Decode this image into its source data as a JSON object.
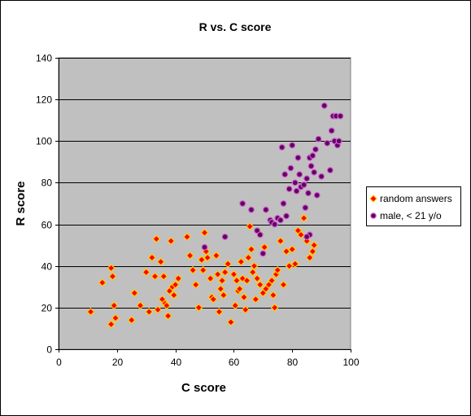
{
  "chart_data": {
    "type": "scatter",
    "title": "R vs. C score",
    "xlabel": "C score",
    "ylabel": "R score",
    "xlim": [
      0,
      100
    ],
    "ylim": [
      0,
      140
    ],
    "x_ticks": [
      0,
      20,
      40,
      60,
      80,
      100
    ],
    "y_ticks": [
      0,
      20,
      40,
      60,
      80,
      100,
      120,
      140
    ],
    "plot_background": "#C0C0C0",
    "grid": "horizontal major gridlines",
    "legend_position": "right",
    "series": [
      {
        "name": "random answers",
        "marker": "diamond",
        "color": "#FF0000",
        "edge_color": "#FFCC00",
        "x": [
          11,
          15,
          18,
          18,
          18.5,
          19,
          19.5,
          25,
          26,
          28,
          30,
          31,
          32,
          33,
          33.5,
          34,
          35,
          35.5,
          36,
          36.5,
          37,
          37.5,
          38,
          38.5,
          39,
          39.5,
          40,
          41,
          44,
          45,
          46,
          47,
          48,
          49,
          49.5,
          50,
          50.5,
          51,
          52,
          52.5,
          53,
          54,
          54.5,
          55,
          55.5,
          56,
          56.5,
          57,
          58,
          59,
          60,
          60.5,
          61,
          61.5,
          62,
          62.5,
          63,
          63.5,
          64,
          64.5,
          65,
          65.5,
          66,
          66.5,
          67,
          67.5,
          68,
          68.5,
          69,
          70,
          70.5,
          71,
          72,
          73,
          73.5,
          74,
          74.5,
          75,
          76,
          77,
          78,
          79,
          80,
          81,
          82,
          83,
          84,
          85,
          86,
          87,
          87.5
        ],
        "y": [
          18,
          32,
          39,
          12,
          35,
          21,
          15,
          14,
          27,
          21,
          37,
          18,
          44,
          35,
          53,
          19,
          42,
          24,
          35,
          22,
          21,
          16,
          28,
          52,
          30,
          26,
          31,
          34,
          54,
          45,
          38,
          31,
          20,
          43,
          38,
          56,
          47,
          44,
          34,
          25,
          24,
          45,
          36,
          18,
          29,
          33,
          26,
          37,
          41,
          13,
          36,
          21,
          33,
          28,
          29,
          42,
          34,
          25,
          19,
          33,
          44,
          59,
          48,
          37,
          40,
          24,
          34,
          56,
          31,
          27,
          49,
          29,
          31,
          33,
          26,
          20,
          36,
          38,
          52,
          31,
          47,
          40,
          48,
          41,
          57,
          55,
          63,
          52,
          44,
          47,
          50
        ]
      },
      {
        "name": "male, < 21 y/o",
        "marker": "circle",
        "color": "#660066",
        "edge_color": "#CC66CC",
        "x": [
          50,
          57,
          63,
          66,
          68,
          69,
          70,
          71,
          72.5,
          73,
          74,
          75,
          76,
          76.5,
          77,
          77.5,
          78,
          79,
          79.5,
          80,
          81,
          81.5,
          82,
          82.5,
          83,
          84,
          84.5,
          85,
          85.5,
          86,
          86.5,
          87,
          87.5,
          88,
          88.5,
          89,
          90,
          91,
          92,
          93,
          93.5,
          94,
          94.5,
          95,
          95.5,
          96,
          96.5,
          86,
          85
        ],
        "y": [
          49,
          54,
          70,
          67,
          57,
          55,
          46,
          67,
          62,
          61,
          60,
          63,
          62,
          97,
          70,
          84,
          64,
          77,
          87,
          98,
          80,
          76,
          92,
          84,
          78,
          79,
          68,
          82,
          75,
          92,
          88,
          93,
          85,
          96,
          74,
          101,
          83,
          117,
          99,
          86,
          105,
          112,
          100,
          112,
          98,
          100,
          112,
          55,
          54
        ]
      }
    ]
  }
}
